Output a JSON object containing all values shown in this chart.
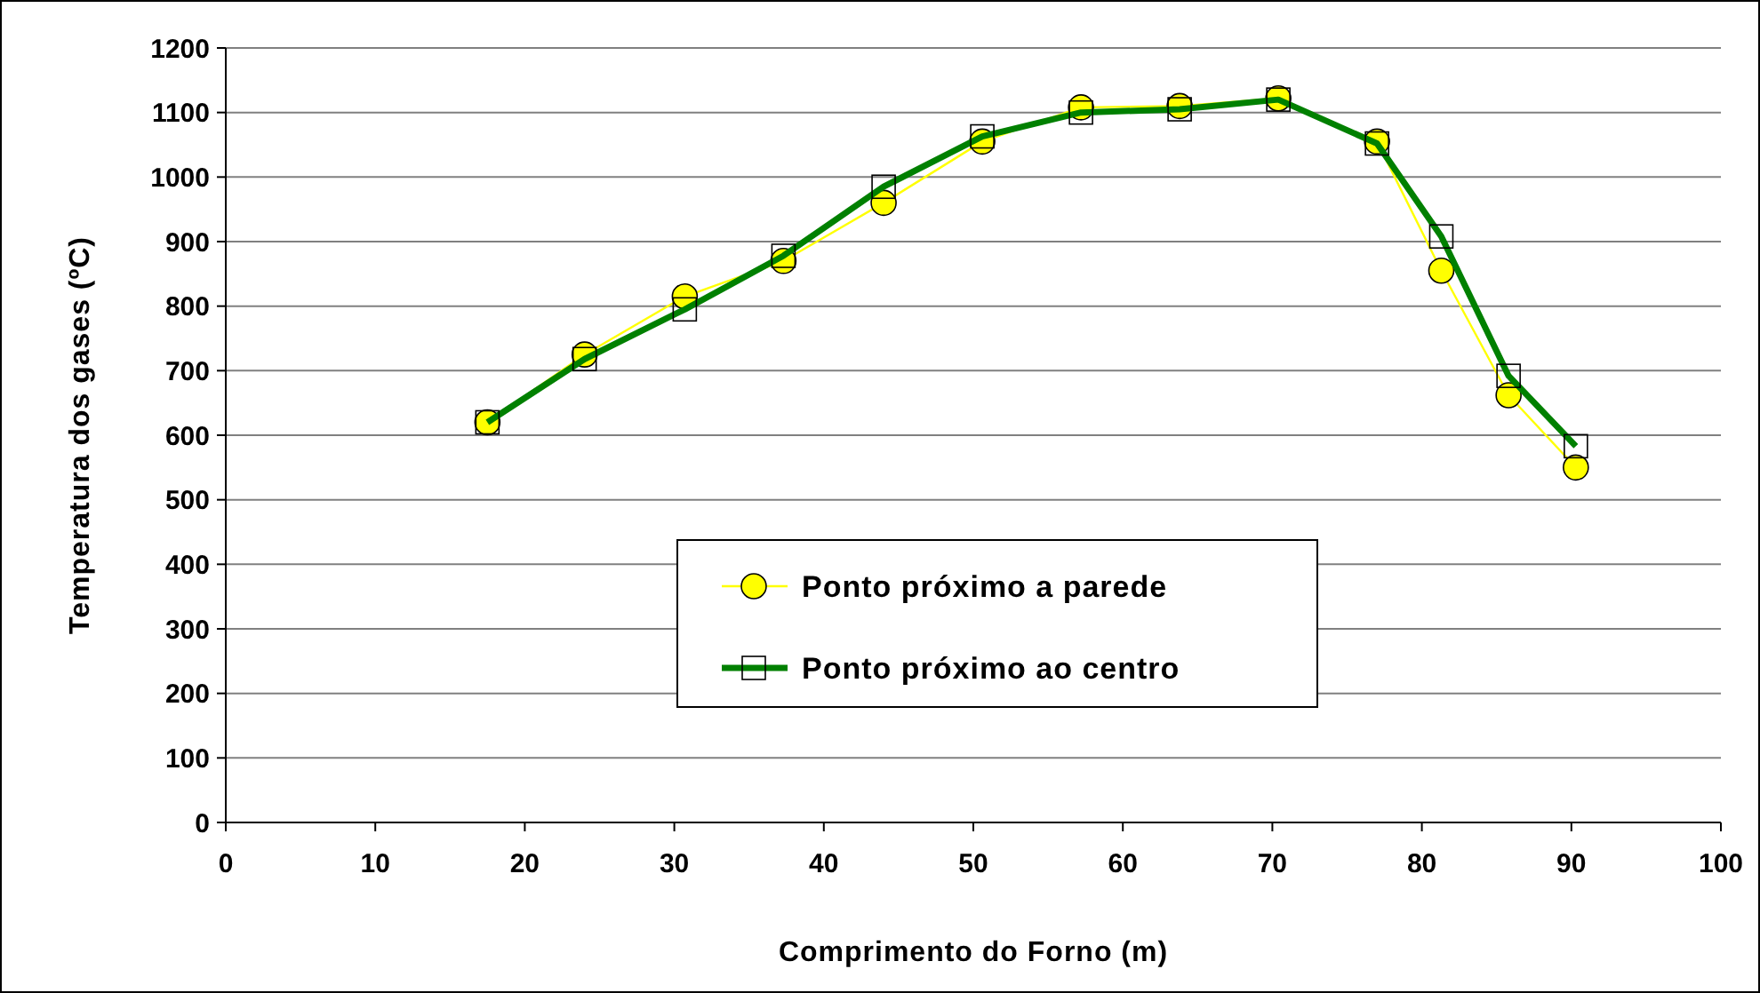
{
  "chart_data": {
    "type": "line",
    "xlabel": "Comprimento do Forno (m)",
    "ylabel": "Temperatura dos gases (ºC)",
    "x": [
      17.5,
      24,
      30.7,
      37.3,
      44,
      50.6,
      57.2,
      63.8,
      70.4,
      77,
      81.3,
      85.8,
      90.3
    ],
    "series": [
      {
        "name": "Ponto próximo a parede",
        "color": "#ffff00",
        "marker": "circle",
        "values": [
          620,
          725,
          815,
          870,
          960,
          1055,
          1108,
          1110,
          1122,
          1055,
          855,
          662,
          550
        ]
      },
      {
        "name": "Ponto próximo ao centro",
        "color": "#008000",
        "marker": "square",
        "values": [
          620,
          718,
          795,
          878,
          985,
          1063,
          1100,
          1105,
          1120,
          1052,
          908,
          692,
          583
        ]
      }
    ],
    "xlim": [
      0,
      100
    ],
    "xticks": [
      0,
      10,
      20,
      30,
      40,
      50,
      60,
      70,
      80,
      90,
      100
    ],
    "ylim": [
      0,
      1200
    ],
    "yticks": [
      0,
      100,
      200,
      300,
      400,
      500,
      600,
      700,
      800,
      900,
      1000,
      1100,
      1200
    ],
    "grid": "y",
    "legend": "bottom",
    "line_style": "solid"
  }
}
